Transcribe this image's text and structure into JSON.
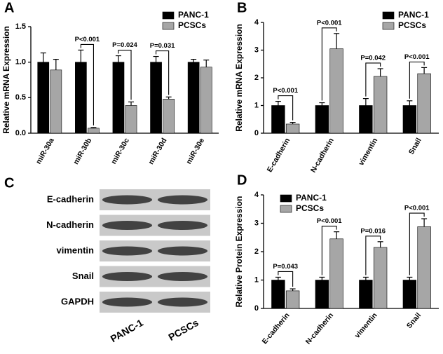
{
  "chart_data": [
    {
      "type": "bar",
      "panel": "A",
      "y_label": "Relative mRNA Expression",
      "categories": [
        "miR-30a",
        "miR-30b",
        "miR-30c",
        "miR-30d",
        "miR-30e"
      ],
      "series": [
        {
          "name": "PANC-1",
          "color": "#000000",
          "values": [
            1,
            1,
            1,
            1,
            1
          ],
          "errors": [
            0.13,
            0.17,
            0.09,
            0.08,
            0.04
          ]
        },
        {
          "name": "PCSCs",
          "color": "#a6a6a6",
          "values": [
            0.89,
            0.07,
            0.39,
            0.48,
            0.93
          ],
          "errors": [
            0.15,
            0.01,
            0.05,
            0.03,
            0.1
          ]
        }
      ],
      "p_values": [
        null,
        "P<0.001",
        "P=0.024",
        "P=0.031",
        null
      ],
      "ylim": [
        0,
        1.5
      ],
      "yticks": [
        {
          "value": 0,
          "label": "0.0"
        },
        0.5,
        {
          "value": 1,
          "label": "1.0"
        },
        1.5
      ],
      "legend": "top-right"
    },
    {
      "type": "bar",
      "panel": "B",
      "y_label": "Relative mRNA Expression",
      "categories": [
        "E-cadherin",
        "N-cadherin",
        "vimentin",
        "Snail"
      ],
      "series": [
        {
          "name": "PANC-1",
          "color": "#000000",
          "values": [
            1,
            1,
            1,
            1
          ],
          "errors": [
            0.15,
            0.1,
            0.25,
            0.17
          ]
        },
        {
          "name": "PCSCs",
          "color": "#a6a6a6",
          "values": [
            0.33,
            3.05,
            2.05,
            2.15
          ],
          "errors": [
            0.06,
            0.55,
            0.28,
            0.22
          ]
        }
      ],
      "p_values": [
        "P<0.001",
        "P<0.001",
        "P=0.042",
        "P<0.001"
      ],
      "ylim": [
        0,
        4
      ],
      "yticks": [
        0,
        1,
        2,
        3,
        4
      ],
      "legend": "top-right"
    },
    {
      "type": "bar",
      "panel": "D",
      "y_label": "Relative Protein Expression",
      "categories": [
        "E-cadherin",
        "N-cadherin",
        "vimentin",
        "Snail"
      ],
      "series": [
        {
          "name": "PANC-1",
          "color": "#000000",
          "values": [
            1,
            1,
            1,
            1
          ],
          "errors": [
            0.1,
            0.1,
            0.1,
            0.1
          ]
        },
        {
          "name": "PCSCs",
          "color": "#a6a6a6",
          "values": [
            0.62,
            2.45,
            2.15,
            2.88
          ],
          "errors": [
            0.07,
            0.25,
            0.2,
            0.28
          ]
        }
      ],
      "p_values": [
        "P=0.043",
        "P<0.001",
        "P=0.016",
        "P<0.001"
      ],
      "ylim": [
        0,
        4
      ],
      "yticks": [
        0,
        1,
        2,
        3,
        4
      ],
      "legend": "top-left"
    }
  ],
  "blot": {
    "panel": "C",
    "rows": [
      "E-cadherin",
      "N-cadherin",
      "vimentin",
      "Snail",
      "GAPDH"
    ],
    "lanes": [
      "PANC-1",
      "PCSCs"
    ]
  }
}
